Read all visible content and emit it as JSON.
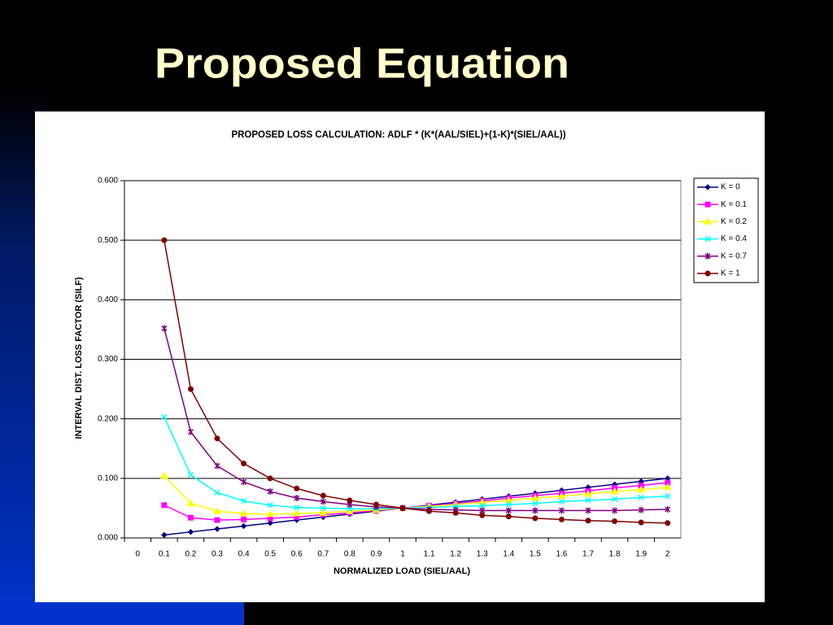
{
  "slide": {
    "title": "Proposed Equation"
  },
  "chart_data": {
    "type": "line",
    "title": "PROPOSED LOSS CALCULATION:   ADLF * (K*(AAL/SIEL)+(1-K)*(SIEL/AAL))",
    "x_label": "NORMALIZED LOAD (SIEL/AAL)",
    "y_label": "INTERVAL DIST. LOSS FACTOR (SILF)",
    "categories": [
      "0",
      "0.1",
      "0.2",
      "0.3",
      "0.4",
      "0.5",
      "0.6",
      "0.7",
      "0.8",
      "0.9",
      "1",
      "1.1",
      "1.2",
      "1.3",
      "1.4",
      "1.5",
      "1.6",
      "1.7",
      "1.8",
      "1.9",
      "2"
    ],
    "ylim": [
      0,
      0.6
    ],
    "yticks": [
      {
        "value": 0,
        "label": "0.000"
      },
      {
        "value": 0.1,
        "label": "0.100"
      },
      {
        "value": 0.2,
        "label": "0.200"
      },
      {
        "value": 0.3,
        "label": "0.300"
      },
      {
        "value": 0.4,
        "label": "0.400"
      },
      {
        "value": 0.5,
        "label": "0.500"
      },
      {
        "value": 0.6,
        "label": "0.600"
      }
    ],
    "grid": true,
    "legend": "right",
    "series": [
      {
        "name": "K = 0",
        "color": "#000080",
        "marker": "diamond",
        "values": [
          null,
          0.005,
          0.01,
          0.015,
          0.02,
          0.025,
          0.03,
          0.035,
          0.04,
          0.045,
          0.05,
          0.055,
          0.06,
          0.065,
          0.07,
          0.075,
          0.08,
          0.085,
          0.09,
          0.095,
          0.1
        ]
      },
      {
        "name": "K = 0.1",
        "color": "#ff00ff",
        "marker": "square",
        "values": [
          null,
          0.055,
          0.034,
          0.03,
          0.031,
          0.033,
          0.035,
          0.039,
          0.042,
          0.046,
          0.05,
          0.054,
          0.058,
          0.062,
          0.067,
          0.071,
          0.075,
          0.079,
          0.084,
          0.088,
          0.093
        ]
      },
      {
        "name": "K = 0.2",
        "color": "#ffff00",
        "marker": "triangle",
        "values": [
          null,
          0.104,
          0.058,
          0.045,
          0.041,
          0.04,
          0.041,
          0.042,
          0.045,
          0.047,
          0.05,
          0.053,
          0.056,
          0.06,
          0.063,
          0.067,
          0.07,
          0.074,
          0.078,
          0.081,
          0.085
        ]
      },
      {
        "name": "K = 0.4",
        "color": "#00ffff",
        "marker": "cross",
        "values": [
          null,
          0.203,
          0.106,
          0.076,
          0.062,
          0.055,
          0.051,
          0.05,
          0.049,
          0.049,
          0.05,
          0.051,
          0.053,
          0.054,
          0.056,
          0.058,
          0.061,
          0.063,
          0.065,
          0.068,
          0.07
        ]
      },
      {
        "name": "K = 0.7",
        "color": "#800080",
        "marker": "star",
        "values": [
          null,
          0.352,
          0.178,
          0.121,
          0.094,
          0.078,
          0.067,
          0.061,
          0.056,
          0.052,
          0.05,
          0.048,
          0.047,
          0.046,
          0.046,
          0.046,
          0.046,
          0.046,
          0.046,
          0.047,
          0.048
        ]
      },
      {
        "name": "K = 1",
        "color": "#800000",
        "marker": "circle",
        "values": [
          null,
          0.5,
          0.25,
          0.167,
          0.125,
          0.1,
          0.083,
          0.071,
          0.063,
          0.056,
          0.05,
          0.045,
          0.042,
          0.038,
          0.036,
          0.033,
          0.031,
          0.029,
          0.028,
          0.026,
          0.025
        ]
      }
    ]
  }
}
